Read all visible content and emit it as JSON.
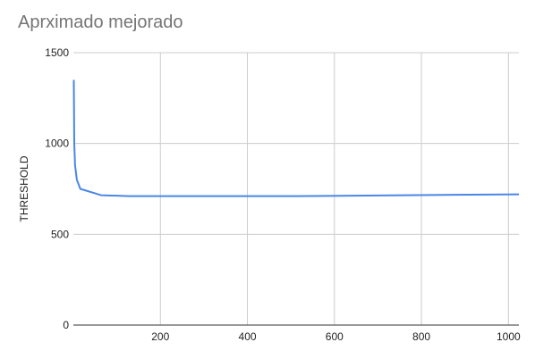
{
  "chart_data": {
    "type": "line",
    "title": "Aprximado mejorado",
    "xlabel": "",
    "ylabel": "THRESHOLD",
    "xlim": [
      0,
      1024
    ],
    "ylim": [
      0,
      1500
    ],
    "x_ticks": [
      200,
      400,
      600,
      800,
      1000
    ],
    "y_ticks": [
      0,
      500,
      1000,
      1500
    ],
    "grid": true,
    "legend": "none",
    "series": [
      {
        "color": "#4a86e8",
        "x": [
          1,
          2,
          4,
          8,
          16,
          64,
          128,
          256,
          512,
          1024
        ],
        "y": [
          1350,
          1000,
          880,
          800,
          750,
          715,
          710,
          710,
          710,
          720
        ]
      }
    ]
  }
}
